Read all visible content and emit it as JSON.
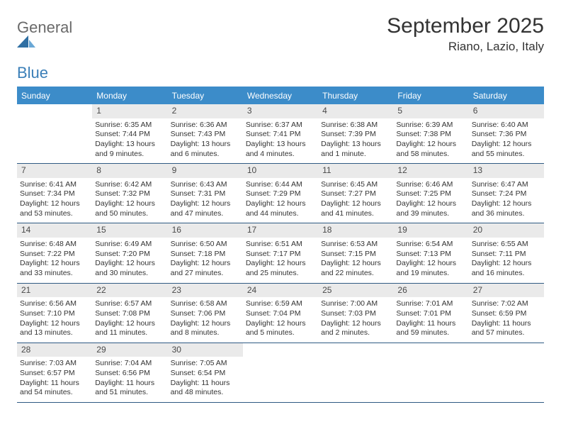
{
  "logo": {
    "text_gray": "General",
    "text_blue": "Blue"
  },
  "title": "September 2025",
  "location": "Riano, Lazio, Italy",
  "colors": {
    "header_bg": "#3c8cc9",
    "header_text": "#ffffff",
    "daynum_bg": "#eaeaea",
    "daynum_text": "#4a4a4a",
    "body_text": "#333333",
    "divider": "#2f5a83",
    "logo_gray": "#6a6a6a",
    "logo_blue": "#3b7fb8",
    "page_bg": "#ffffff"
  },
  "weekdays": [
    "Sunday",
    "Monday",
    "Tuesday",
    "Wednesday",
    "Thursday",
    "Friday",
    "Saturday"
  ],
  "weeks": [
    [
      null,
      {
        "n": "1",
        "sr": "6:35 AM",
        "ss": "7:44 PM",
        "d1": "Daylight: 13 hours",
        "d2": "and 9 minutes."
      },
      {
        "n": "2",
        "sr": "6:36 AM",
        "ss": "7:43 PM",
        "d1": "Daylight: 13 hours",
        "d2": "and 6 minutes."
      },
      {
        "n": "3",
        "sr": "6:37 AM",
        "ss": "7:41 PM",
        "d1": "Daylight: 13 hours",
        "d2": "and 4 minutes."
      },
      {
        "n": "4",
        "sr": "6:38 AM",
        "ss": "7:39 PM",
        "d1": "Daylight: 13 hours",
        "d2": "and 1 minute."
      },
      {
        "n": "5",
        "sr": "6:39 AM",
        "ss": "7:38 PM",
        "d1": "Daylight: 12 hours",
        "d2": "and 58 minutes."
      },
      {
        "n": "6",
        "sr": "6:40 AM",
        "ss": "7:36 PM",
        "d1": "Daylight: 12 hours",
        "d2": "and 55 minutes."
      }
    ],
    [
      {
        "n": "7",
        "sr": "6:41 AM",
        "ss": "7:34 PM",
        "d1": "Daylight: 12 hours",
        "d2": "and 53 minutes."
      },
      {
        "n": "8",
        "sr": "6:42 AM",
        "ss": "7:32 PM",
        "d1": "Daylight: 12 hours",
        "d2": "and 50 minutes."
      },
      {
        "n": "9",
        "sr": "6:43 AM",
        "ss": "7:31 PM",
        "d1": "Daylight: 12 hours",
        "d2": "and 47 minutes."
      },
      {
        "n": "10",
        "sr": "6:44 AM",
        "ss": "7:29 PM",
        "d1": "Daylight: 12 hours",
        "d2": "and 44 minutes."
      },
      {
        "n": "11",
        "sr": "6:45 AM",
        "ss": "7:27 PM",
        "d1": "Daylight: 12 hours",
        "d2": "and 41 minutes."
      },
      {
        "n": "12",
        "sr": "6:46 AM",
        "ss": "7:25 PM",
        "d1": "Daylight: 12 hours",
        "d2": "and 39 minutes."
      },
      {
        "n": "13",
        "sr": "6:47 AM",
        "ss": "7:24 PM",
        "d1": "Daylight: 12 hours",
        "d2": "and 36 minutes."
      }
    ],
    [
      {
        "n": "14",
        "sr": "6:48 AM",
        "ss": "7:22 PM",
        "d1": "Daylight: 12 hours",
        "d2": "and 33 minutes."
      },
      {
        "n": "15",
        "sr": "6:49 AM",
        "ss": "7:20 PM",
        "d1": "Daylight: 12 hours",
        "d2": "and 30 minutes."
      },
      {
        "n": "16",
        "sr": "6:50 AM",
        "ss": "7:18 PM",
        "d1": "Daylight: 12 hours",
        "d2": "and 27 minutes."
      },
      {
        "n": "17",
        "sr": "6:51 AM",
        "ss": "7:17 PM",
        "d1": "Daylight: 12 hours",
        "d2": "and 25 minutes."
      },
      {
        "n": "18",
        "sr": "6:53 AM",
        "ss": "7:15 PM",
        "d1": "Daylight: 12 hours",
        "d2": "and 22 minutes."
      },
      {
        "n": "19",
        "sr": "6:54 AM",
        "ss": "7:13 PM",
        "d1": "Daylight: 12 hours",
        "d2": "and 19 minutes."
      },
      {
        "n": "20",
        "sr": "6:55 AM",
        "ss": "7:11 PM",
        "d1": "Daylight: 12 hours",
        "d2": "and 16 minutes."
      }
    ],
    [
      {
        "n": "21",
        "sr": "6:56 AM",
        "ss": "7:10 PM",
        "d1": "Daylight: 12 hours",
        "d2": "and 13 minutes."
      },
      {
        "n": "22",
        "sr": "6:57 AM",
        "ss": "7:08 PM",
        "d1": "Daylight: 12 hours",
        "d2": "and 11 minutes."
      },
      {
        "n": "23",
        "sr": "6:58 AM",
        "ss": "7:06 PM",
        "d1": "Daylight: 12 hours",
        "d2": "and 8 minutes."
      },
      {
        "n": "24",
        "sr": "6:59 AM",
        "ss": "7:04 PM",
        "d1": "Daylight: 12 hours",
        "d2": "and 5 minutes."
      },
      {
        "n": "25",
        "sr": "7:00 AM",
        "ss": "7:03 PM",
        "d1": "Daylight: 12 hours",
        "d2": "and 2 minutes."
      },
      {
        "n": "26",
        "sr": "7:01 AM",
        "ss": "7:01 PM",
        "d1": "Daylight: 11 hours",
        "d2": "and 59 minutes."
      },
      {
        "n": "27",
        "sr": "7:02 AM",
        "ss": "6:59 PM",
        "d1": "Daylight: 11 hours",
        "d2": "and 57 minutes."
      }
    ],
    [
      {
        "n": "28",
        "sr": "7:03 AM",
        "ss": "6:57 PM",
        "d1": "Daylight: 11 hours",
        "d2": "and 54 minutes."
      },
      {
        "n": "29",
        "sr": "7:04 AM",
        "ss": "6:56 PM",
        "d1": "Daylight: 11 hours",
        "d2": "and 51 minutes."
      },
      {
        "n": "30",
        "sr": "7:05 AM",
        "ss": "6:54 PM",
        "d1": "Daylight: 11 hours",
        "d2": "and 48 minutes."
      },
      null,
      null,
      null,
      null
    ]
  ]
}
